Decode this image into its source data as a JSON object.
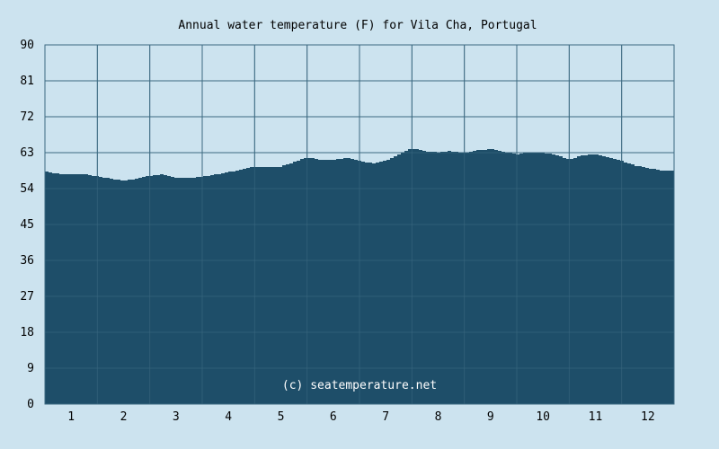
{
  "chart_data": {
    "type": "area",
    "title": "Annual water temperature (F) for Vila Cha, Portugal",
    "watermark": "(c) seatemperature.net",
    "xlabel": "",
    "ylabel": "",
    "x_ticks": [
      "1",
      "2",
      "3",
      "4",
      "5",
      "6",
      "7",
      "8",
      "9",
      "10",
      "11",
      "12"
    ],
    "y_ticks": [
      "0",
      "9",
      "18",
      "27",
      "36",
      "45",
      "54",
      "63",
      "72",
      "81",
      "90"
    ],
    "ylim": [
      0,
      90
    ],
    "xlim": [
      0.5,
      12.5
    ],
    "grid": true,
    "colors": {
      "background": "#cce3ef",
      "plot_background": "#cce3ef",
      "fill": "#1e4e69",
      "grid": "#3c6a82",
      "border": "#3c6a82"
    },
    "series": [
      {
        "x": [
          0.5,
          0.75,
          1.0,
          1.25,
          1.5,
          1.75,
          2.0,
          2.25,
          2.5,
          2.75,
          3.0,
          3.25,
          3.5,
          3.75,
          4.0,
          4.25,
          4.5,
          4.75,
          5.0,
          5.25,
          5.5,
          5.75,
          6.0,
          6.25,
          6.5,
          6.75,
          7.0,
          7.25,
          7.5,
          7.75,
          8.0,
          8.25,
          8.5,
          8.75,
          9.0,
          9.25,
          9.5,
          9.75,
          10.0,
          10.25,
          10.5,
          10.75,
          11.0,
          11.25,
          11.5,
          11.75,
          12.0,
          12.25,
          12.5
        ],
        "values": [
          58.3,
          57.7,
          57.5,
          57.6,
          57.1,
          56.5,
          56.0,
          56.5,
          57.2,
          57.6,
          56.8,
          56.6,
          57.0,
          57.5,
          58.1,
          58.8,
          59.5,
          59.3,
          59.5,
          60.6,
          61.8,
          61.3,
          61.2,
          61.7,
          61.0,
          60.3,
          61.0,
          62.5,
          64.1,
          63.3,
          63.1,
          63.4,
          62.9,
          63.6,
          63.9,
          63.2,
          62.6,
          63.1,
          63.0,
          62.5,
          61.2,
          62.3,
          62.7,
          61.8,
          60.9,
          59.8,
          59.2,
          58.5,
          58.6
        ]
      }
    ]
  }
}
